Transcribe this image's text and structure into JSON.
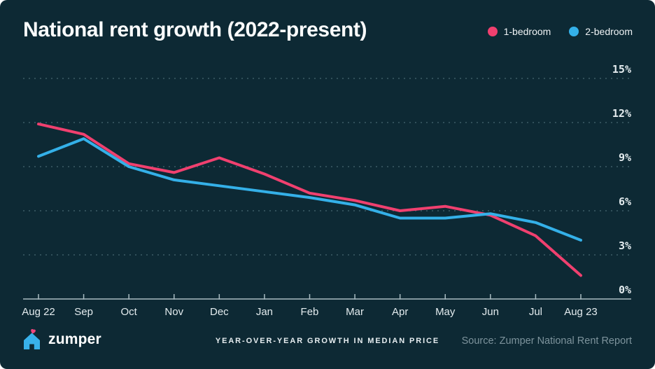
{
  "title": "National rent growth (2022-present)",
  "legend": [
    {
      "label": "1-bedroom",
      "color": "#f0406f"
    },
    {
      "label": "2-bedroom",
      "color": "#34b0e8"
    }
  ],
  "chart_data": {
    "type": "line",
    "categories": [
      "Aug 22",
      "Sep",
      "Oct",
      "Nov",
      "Dec",
      "Jan",
      "Feb",
      "Mar",
      "Apr",
      "May",
      "Jun",
      "Jul",
      "Aug 23"
    ],
    "series": [
      {
        "name": "1-bedroom",
        "color": "#f0406f",
        "values": [
          11.9,
          11.2,
          9.2,
          8.6,
          9.6,
          8.5,
          7.2,
          6.7,
          6.0,
          6.3,
          5.7,
          4.3,
          1.6
        ]
      },
      {
        "name": "2-bedroom",
        "color": "#34b0e8",
        "values": [
          9.7,
          10.9,
          9.0,
          8.1,
          7.7,
          7.3,
          6.9,
          6.4,
          5.5,
          5.5,
          5.8,
          5.2,
          4.0
        ]
      }
    ],
    "title": "National rent growth (2022-present)",
    "xlabel": "",
    "ylabel": "",
    "yticks": [
      0,
      3,
      6,
      9,
      12,
      15
    ],
    "ytick_labels": [
      "0%",
      "3%",
      "6%",
      "9%",
      "12%",
      "15%"
    ],
    "ylim": [
      0,
      16.5
    ],
    "grid": "horizontal-dotted",
    "legend_position": "top-right",
    "units": "percent year-over-year"
  },
  "footer": {
    "brand": "zumper",
    "caption": "YEAR-OVER-YEAR GROWTH IN MEDIAN PRICE",
    "source": "Source: Zumper National Rent Report"
  },
  "colors": {
    "background": "#0d2934",
    "one_bedroom_line": "#f0406f",
    "two_bedroom_line": "#34b0e8",
    "gridline": "#31505a",
    "axis": "#a9bcc2",
    "text": "#e3ebee",
    "muted_text": "#7d939c",
    "logo_house": "#38b1ea",
    "logo_heart": "#f0457c"
  }
}
